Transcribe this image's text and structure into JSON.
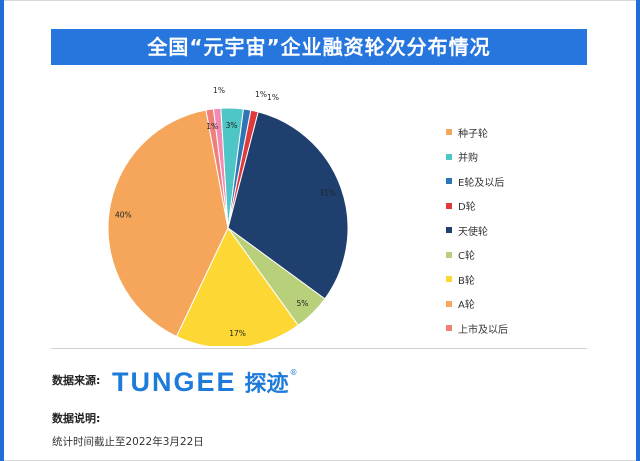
{
  "title": "全国“元宇宙”企业融资轮次分布情况",
  "chart_data": {
    "type": "pie",
    "start_angle_deg": -7,
    "slices": [
      {
        "label": "1%",
        "value": 1,
        "color": "#f08ab3"
      },
      {
        "label": "3%",
        "value": 3,
        "color": "#4ec6c6"
      },
      {
        "label": "1%",
        "value": 1,
        "color": "#2e75b6"
      },
      {
        "label": "1%",
        "value": 1,
        "color": "#e0393b"
      },
      {
        "label": "31%",
        "value": 31,
        "color": "#1f3f6e"
      },
      {
        "label": "5%",
        "value": 5,
        "color": "#b9d07a"
      },
      {
        "label": "17%",
        "value": 17,
        "color": "#fdd835"
      },
      {
        "label": "40%",
        "value": 40,
        "color": "#f5a65b"
      },
      {
        "label": "1%",
        "value": 1,
        "color": "#ee8079"
      }
    ],
    "legend": {
      "placement": "right",
      "entries": [
        {
          "name": "种子轮",
          "color": "#f5a65b"
        },
        {
          "name": "并购",
          "color": "#4ec6c6"
        },
        {
          "name": "E轮及以后",
          "color": "#2e75b6"
        },
        {
          "name": "D轮",
          "color": "#e0393b"
        },
        {
          "name": "天使轮",
          "color": "#1f3f6e"
        },
        {
          "name": "C轮",
          "color": "#b9d07a"
        },
        {
          "name": "B轮",
          "color": "#fdd835"
        },
        {
          "name": "A轮",
          "color": "#f5a65b"
        },
        {
          "name": "上市及以后",
          "color": "#ee8079"
        }
      ]
    }
  },
  "footer": {
    "source_label": "数据来源:",
    "logo_en": "TUNGEE",
    "logo_cn": "探迹",
    "logo_mark": "®",
    "note_label": "数据说明:",
    "note_text": "统计时间截止至2022年3月22日"
  }
}
